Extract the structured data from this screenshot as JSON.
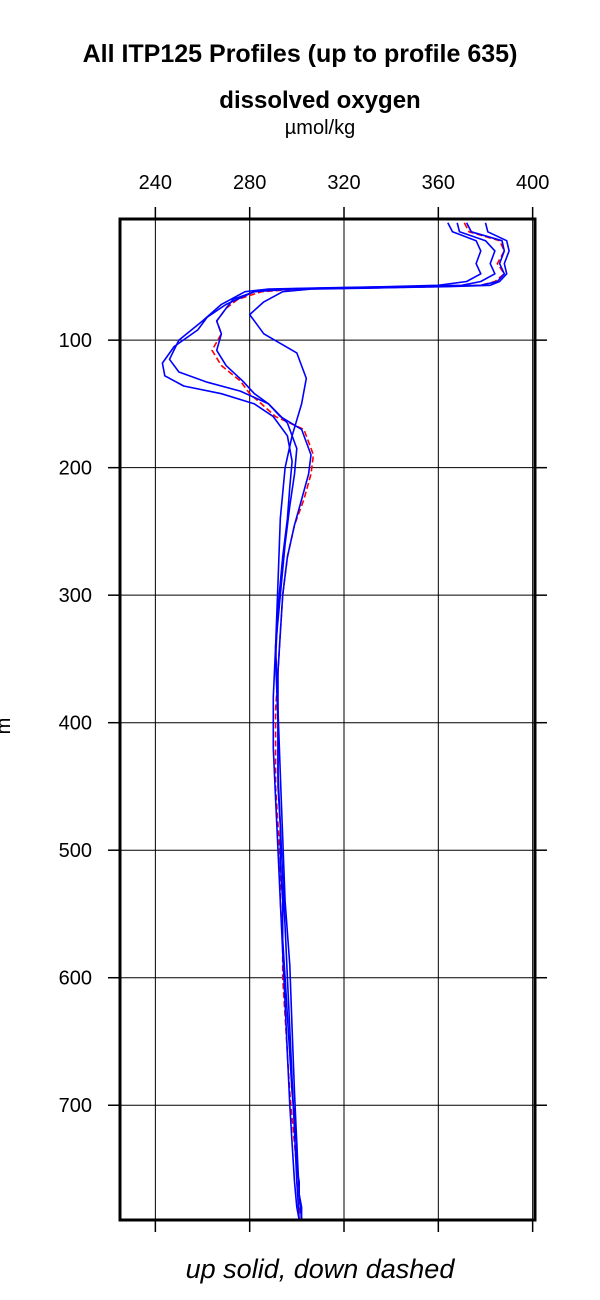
{
  "chart_data": {
    "type": "line",
    "title": "All ITP125 Profiles (up to profile 635)",
    "subtitle": "dissolved oxygen",
    "xlabel": "µmol/kg",
    "ylabel": "m",
    "footnote": "up solid, down dashed",
    "xlim": [
      225,
      401
    ],
    "ylim": [
      5,
      790
    ],
    "y_inverted": true,
    "x_axis_position": "top",
    "grid": true,
    "xticks": [
      240,
      280,
      320,
      360,
      400
    ],
    "yticks": [
      100,
      200,
      300,
      400,
      500,
      600,
      700
    ],
    "series": [
      {
        "style": "dashed",
        "color": "#ff0000",
        "x": [
          371,
          373,
          386,
          388,
          385,
          388,
          384,
          378,
          360,
          330,
          300,
          285,
          275,
          270,
          266,
          268,
          264,
          268,
          276,
          280,
          285,
          291,
          303,
          307,
          306,
          303,
          299,
          296,
          294,
          293,
          292,
          291,
          291,
          291,
          292,
          293,
          293,
          294,
          294,
          295,
          296,
          297,
          298,
          299,
          300,
          300,
          301,
          301,
          302
        ],
        "y": [
          8,
          15,
          22,
          30,
          40,
          48,
          54,
          57,
          58,
          59,
          60,
          62,
          68,
          75,
          85,
          95,
          108,
          120,
          132,
          142,
          150,
          160,
          170,
          190,
          205,
          225,
          245,
          270,
          300,
          330,
          360,
          390,
          420,
          450,
          480,
          510,
          540,
          570,
          600,
          630,
          660,
          690,
          710,
          730,
          750,
          760,
          770,
          780,
          790
        ]
      },
      {
        "style": "solid",
        "color": "#0000ff",
        "x": [
          372,
          374,
          387,
          388,
          386,
          388,
          385,
          378,
          358,
          328,
          298,
          282,
          273,
          270,
          266,
          268,
          266,
          270,
          277,
          282,
          288,
          293,
          302,
          306,
          305,
          302,
          299,
          296,
          294,
          293,
          292,
          292,
          292,
          292,
          293,
          293,
          294,
          294,
          295,
          296,
          297,
          298,
          299,
          300,
          300,
          301,
          301,
          302,
          302
        ],
        "y": [
          8,
          15,
          22,
          30,
          40,
          48,
          54,
          57,
          58,
          59,
          60,
          62,
          68,
          75,
          85,
          95,
          108,
          120,
          132,
          142,
          150,
          160,
          170,
          190,
          205,
          225,
          245,
          270,
          300,
          330,
          360,
          390,
          420,
          450,
          480,
          510,
          540,
          570,
          600,
          630,
          660,
          690,
          710,
          730,
          750,
          760,
          770,
          780,
          790
        ]
      },
      {
        "style": "solid",
        "color": "#0000ff",
        "x": [
          368,
          369,
          380,
          384,
          382,
          384,
          378,
          370,
          345,
          315,
          292,
          282,
          270,
          262,
          258,
          248,
          243,
          244,
          252,
          268,
          282,
          290,
          296,
          298,
          297,
          296,
          294,
          292,
          291,
          292,
          292,
          293,
          294,
          295,
          296,
          297,
          298,
          299,
          300,
          301
        ],
        "y": [
          8,
          15,
          22,
          30,
          40,
          48,
          54,
          57,
          58,
          59,
          60,
          62,
          72,
          82,
          92,
          105,
          118,
          128,
          136,
          142,
          150,
          160,
          175,
          195,
          215,
          240,
          270,
          310,
          350,
          400,
          440,
          480,
          520,
          560,
          600,
          640,
          680,
          720,
          760,
          790
        ]
      },
      {
        "style": "solid",
        "color": "#0000ff",
        "x": [
          380,
          381,
          389,
          390,
          388,
          389,
          386,
          382,
          365,
          335,
          306,
          294,
          286,
          280,
          286,
          300,
          304,
          302,
          298,
          295,
          293,
          292,
          291,
          292,
          293,
          294,
          295,
          297,
          298,
          299,
          300,
          301,
          302
        ],
        "y": [
          8,
          15,
          22,
          30,
          40,
          48,
          54,
          57,
          58,
          59,
          60,
          62,
          70,
          80,
          95,
          110,
          130,
          150,
          175,
          200,
          240,
          290,
          340,
          390,
          440,
          490,
          540,
          590,
          640,
          690,
          730,
          770,
          790
        ]
      },
      {
        "style": "solid",
        "color": "#0000ff",
        "x": [
          364,
          366,
          376,
          378,
          376,
          378,
          372,
          360,
          340,
          310,
          288,
          278,
          268,
          260,
          250,
          246,
          250,
          262,
          276,
          288,
          296,
          300,
          299,
          297,
          295,
          293,
          291,
          290,
          290,
          291,
          292,
          293,
          294,
          295,
          296,
          297,
          298,
          299,
          300,
          301
        ],
        "y": [
          8,
          15,
          22,
          30,
          40,
          48,
          54,
          57,
          58,
          59,
          60,
          62,
          72,
          85,
          100,
          115,
          125,
          133,
          140,
          150,
          165,
          185,
          205,
          230,
          260,
          300,
          340,
          380,
          420,
          460,
          500,
          540,
          580,
          620,
          660,
          700,
          730,
          760,
          780,
          790
        ]
      }
    ]
  }
}
